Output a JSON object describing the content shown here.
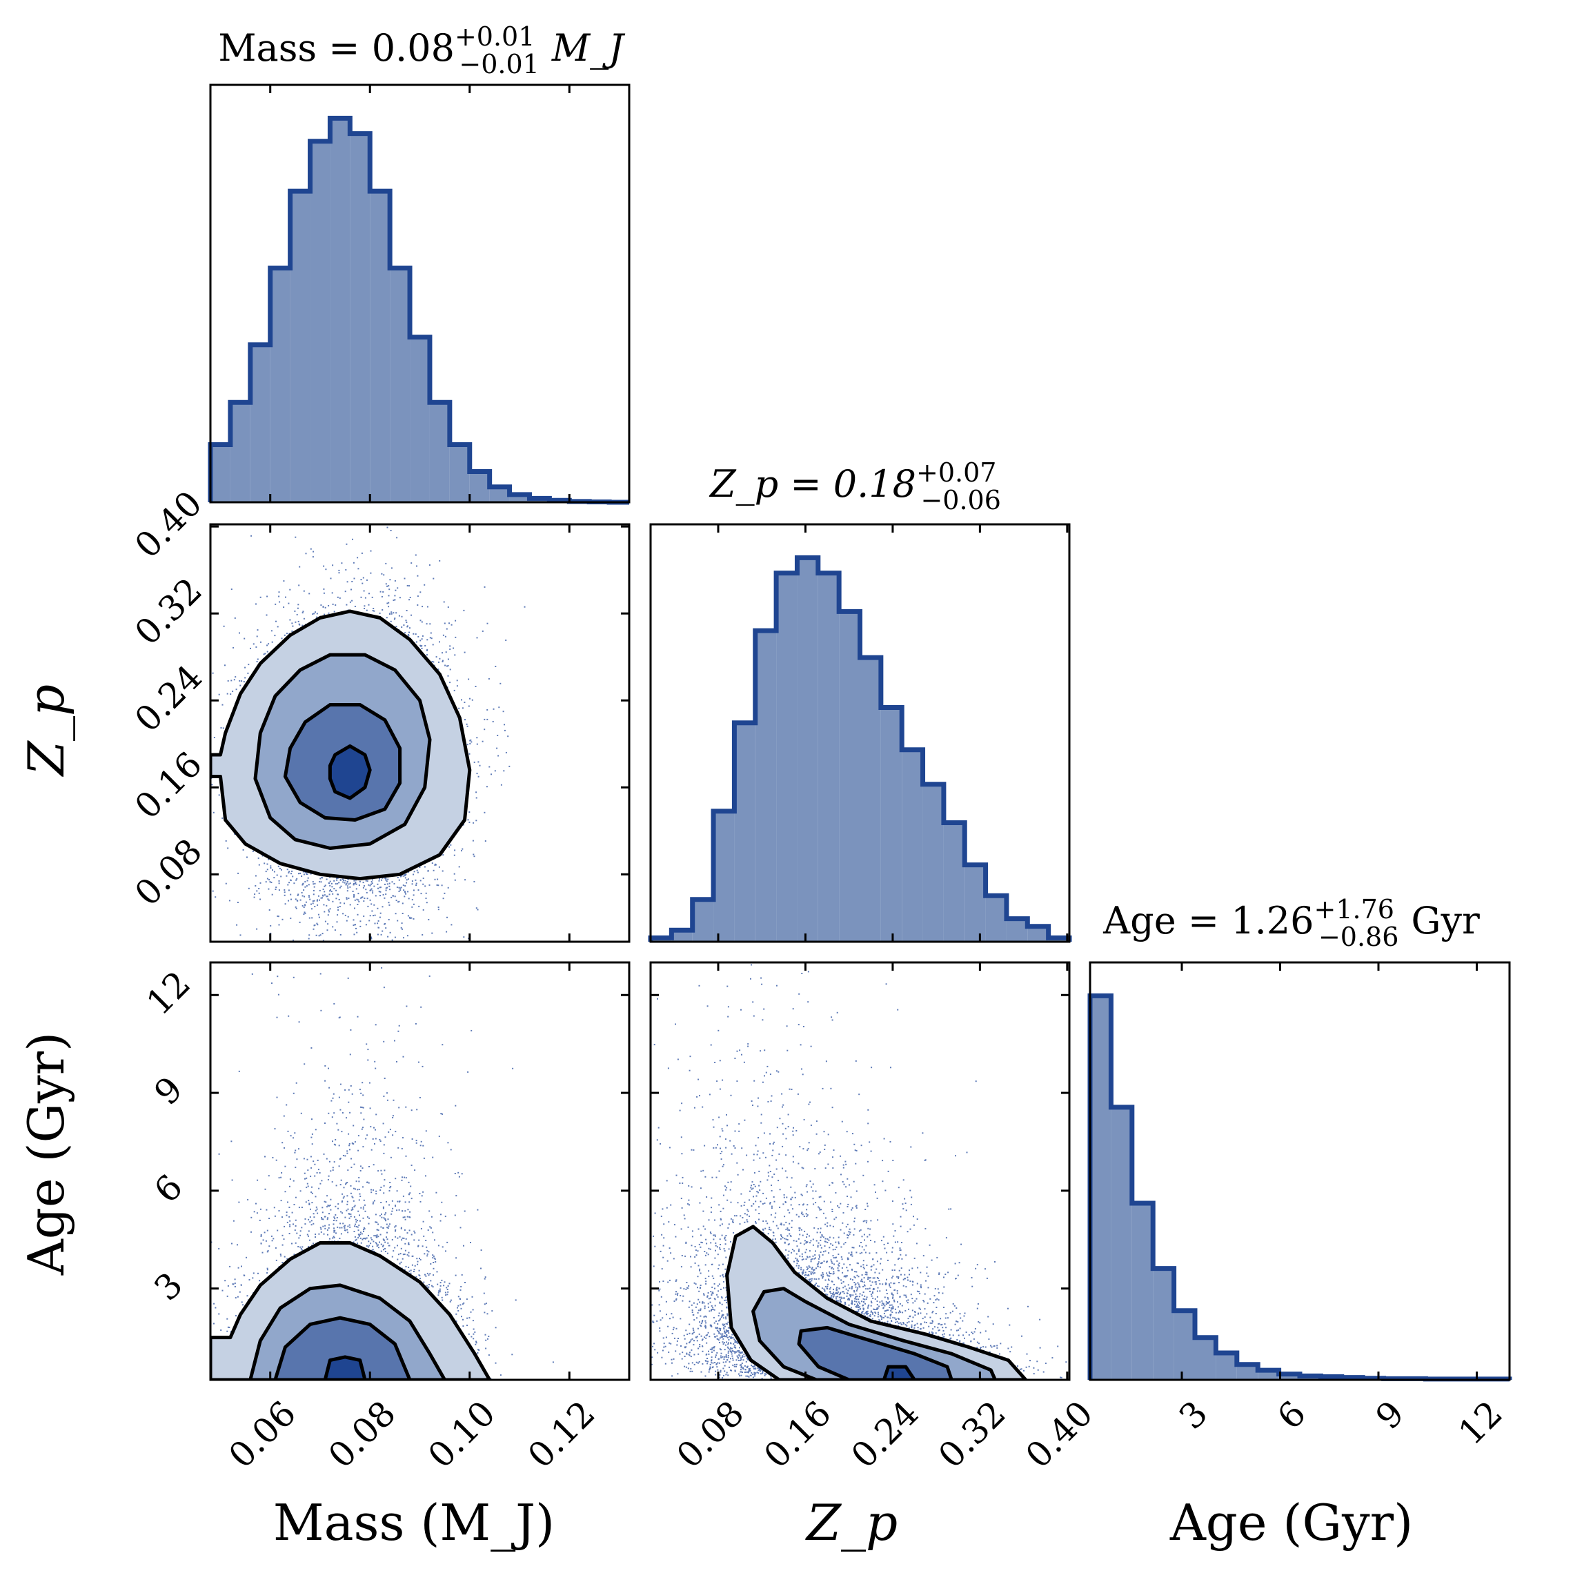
{
  "chart_data": {
    "type": "corner",
    "colors": {
      "hist_fill": "#7b93bd",
      "hist_edge": "#1f4591",
      "scatter": "#2a50a0",
      "contour_levels": [
        "#c5d1e3",
        "#91a7cb",
        "#5875ad",
        "#1f4591"
      ],
      "contour_line": "#000000"
    },
    "parameters": [
      {
        "id": "mass",
        "axis_label": "Mass (M_J)",
        "title_prefix": "Mass = 0.08",
        "title_sup": "+0.01",
        "title_sub": "−0.01",
        "title_unit": "M_J",
        "median": 0.08,
        "err_plus": 0.01,
        "err_minus": 0.01,
        "range": [
          0.048,
          0.132
        ],
        "ticks": [
          0.06,
          0.08,
          0.1,
          0.12
        ],
        "tick_labels": [
          "0.06",
          "0.08",
          "0.10",
          "0.12"
        ]
      },
      {
        "id": "zp",
        "axis_label": "Z_p",
        "title_prefix": "Z_p = 0.18",
        "title_sup": "+0.07",
        "title_sub": "−0.06",
        "title_unit": "",
        "median": 0.18,
        "err_plus": 0.07,
        "err_minus": 0.06,
        "range": [
          0.018,
          0.402
        ],
        "ticks": [
          0.08,
          0.16,
          0.24,
          0.32,
          0.4
        ],
        "tick_labels": [
          "0.08",
          "0.16",
          "0.24",
          "0.32",
          "0.40"
        ]
      },
      {
        "id": "age",
        "axis_label": "Age (Gyr)",
        "title_prefix": "Age = 1.26",
        "title_sup": "+1.76",
        "title_sub": "−0.86",
        "title_unit": "Gyr",
        "median": 1.26,
        "err_plus": 1.76,
        "err_minus": 0.86,
        "range": [
          0.2,
          13.0
        ],
        "ticks": [
          3,
          6,
          9,
          12
        ],
        "tick_labels": [
          "3",
          "6",
          "9",
          "12"
        ]
      }
    ],
    "histograms": {
      "mass": {
        "edges": [
          0.048,
          0.052,
          0.056,
          0.06,
          0.064,
          0.068,
          0.072,
          0.076,
          0.08,
          0.084,
          0.088,
          0.092,
          0.096,
          0.1,
          0.104,
          0.108,
          0.112,
          0.116,
          0.12,
          0.124,
          0.128,
          0.132
        ],
        "counts": [
          0.15,
          0.26,
          0.41,
          0.61,
          0.81,
          0.94,
          1.0,
          0.96,
          0.81,
          0.61,
          0.43,
          0.26,
          0.15,
          0.08,
          0.04,
          0.02,
          0.01,
          0.005,
          0.002,
          0.001,
          0.0
        ]
      },
      "zp": {
        "edges": [
          0.018,
          0.0372,
          0.0564,
          0.0756,
          0.0948,
          0.114,
          0.1332,
          0.1524,
          0.1716,
          0.1908,
          0.21,
          0.2292,
          0.2484,
          0.2676,
          0.2868,
          0.306,
          0.3252,
          0.3444,
          0.3636,
          0.3828,
          0.402
        ],
        "counts": [
          0.01,
          0.03,
          0.11,
          0.34,
          0.57,
          0.81,
          0.96,
          1.0,
          0.96,
          0.86,
          0.74,
          0.61,
          0.5,
          0.41,
          0.31,
          0.2,
          0.12,
          0.06,
          0.04,
          0.01
        ]
      },
      "age": {
        "edges": [
          0.2,
          0.84,
          1.48,
          2.12,
          2.76,
          3.4,
          4.04,
          4.68,
          5.32,
          5.96,
          6.6,
          7.24,
          7.88,
          8.52,
          9.16,
          9.8,
          10.44,
          11.08,
          11.72,
          12.36,
          13.0
        ],
        "counts": [
          1.0,
          0.71,
          0.46,
          0.29,
          0.18,
          0.11,
          0.07,
          0.04,
          0.025,
          0.015,
          0.01,
          0.008,
          0.006,
          0.004,
          0.003,
          0.003,
          0.002,
          0.002,
          0.002,
          0.002
        ]
      }
    },
    "pairs": [
      {
        "x": "mass",
        "y": "zp",
        "contours": [
          [
            [
              0.048,
              0.19
            ],
            [
              0.05,
              0.19
            ],
            [
              0.051,
              0.21
            ],
            [
              0.054,
              0.246
            ],
            [
              0.058,
              0.274
            ],
            [
              0.064,
              0.3
            ],
            [
              0.07,
              0.316
            ],
            [
              0.076,
              0.322
            ],
            [
              0.082,
              0.316
            ],
            [
              0.088,
              0.296
            ],
            [
              0.094,
              0.264
            ],
            [
              0.098,
              0.224
            ],
            [
              0.1,
              0.176
            ],
            [
              0.099,
              0.13
            ],
            [
              0.094,
              0.098
            ],
            [
              0.086,
              0.08
            ],
            [
              0.078,
              0.076
            ],
            [
              0.07,
              0.08
            ],
            [
              0.062,
              0.09
            ],
            [
              0.055,
              0.108
            ],
            [
              0.051,
              0.13
            ],
            [
              0.05,
              0.17
            ],
            [
              0.048,
              0.17
            ]
          ],
          [
            [
              0.058,
              0.21
            ],
            [
              0.061,
              0.244
            ],
            [
              0.066,
              0.268
            ],
            [
              0.072,
              0.282
            ],
            [
              0.079,
              0.282
            ],
            [
              0.085,
              0.268
            ],
            [
              0.09,
              0.24
            ],
            [
              0.092,
              0.204
            ],
            [
              0.091,
              0.16
            ],
            [
              0.087,
              0.126
            ],
            [
              0.08,
              0.108
            ],
            [
              0.072,
              0.104
            ],
            [
              0.065,
              0.112
            ],
            [
              0.06,
              0.132
            ],
            [
              0.057,
              0.168
            ]
          ],
          [
            [
              0.064,
              0.196
            ],
            [
              0.067,
              0.22
            ],
            [
              0.072,
              0.236
            ],
            [
              0.078,
              0.236
            ],
            [
              0.083,
              0.222
            ],
            [
              0.086,
              0.196
            ],
            [
              0.086,
              0.164
            ],
            [
              0.083,
              0.14
            ],
            [
              0.077,
              0.13
            ],
            [
              0.071,
              0.132
            ],
            [
              0.066,
              0.146
            ],
            [
              0.063,
              0.17
            ]
          ],
          [
            [
              0.072,
              0.18
            ],
            [
              0.073,
              0.19
            ],
            [
              0.076,
              0.198
            ],
            [
              0.079,
              0.19
            ],
            [
              0.08,
              0.176
            ],
            [
              0.079,
              0.16
            ],
            [
              0.076,
              0.15
            ],
            [
              0.073,
              0.156
            ],
            [
              0.072,
              0.168
            ]
          ]
        ]
      },
      {
        "x": "mass",
        "y": "age",
        "contours": [
          [
            [
              0.048,
              1.5
            ],
            [
              0.052,
              1.5
            ],
            [
              0.054,
              2.2
            ],
            [
              0.058,
              3.1
            ],
            [
              0.064,
              3.9
            ],
            [
              0.07,
              4.4
            ],
            [
              0.076,
              4.4
            ],
            [
              0.082,
              4.0
            ],
            [
              0.09,
              3.2
            ],
            [
              0.096,
              2.2
            ],
            [
              0.101,
              1.0
            ],
            [
              0.104,
              0.2
            ],
            [
              0.048,
              0.2
            ]
          ],
          [
            [
              0.056,
              0.2
            ],
            [
              0.058,
              1.4
            ],
            [
              0.062,
              2.4
            ],
            [
              0.068,
              3.0
            ],
            [
              0.074,
              3.1
            ],
            [
              0.082,
              2.7
            ],
            [
              0.088,
              2.0
            ],
            [
              0.092,
              1.0
            ],
            [
              0.095,
              0.2
            ]
          ],
          [
            [
              0.061,
              0.2
            ],
            [
              0.063,
              1.2
            ],
            [
              0.068,
              1.9
            ],
            [
              0.074,
              2.1
            ],
            [
              0.08,
              1.9
            ],
            [
              0.085,
              1.3
            ],
            [
              0.088,
              0.2
            ]
          ],
          [
            [
              0.071,
              0.2
            ],
            [
              0.072,
              0.8
            ],
            [
              0.075,
              0.9
            ],
            [
              0.078,
              0.8
            ],
            [
              0.079,
              0.2
            ]
          ]
        ]
      },
      {
        "x": "zp",
        "y": "age",
        "contours": [
          [
            [
              0.136,
              0.2
            ],
            [
              0.11,
              0.8
            ],
            [
              0.092,
              1.8
            ],
            [
              0.088,
              3.4
            ],
            [
              0.096,
              4.6
            ],
            [
              0.112,
              4.9
            ],
            [
              0.13,
              4.4
            ],
            [
              0.15,
              3.5
            ],
            [
              0.18,
              2.7
            ],
            [
              0.22,
              2.0
            ],
            [
              0.27,
              1.6
            ],
            [
              0.31,
              1.2
            ],
            [
              0.346,
              0.8
            ],
            [
              0.362,
              0.2
            ]
          ],
          [
            [
              0.17,
              0.2
            ],
            [
              0.14,
              0.6
            ],
            [
              0.118,
              1.4
            ],
            [
              0.112,
              2.3
            ],
            [
              0.122,
              2.9
            ],
            [
              0.14,
              3.0
            ],
            [
              0.16,
              2.6
            ],
            [
              0.2,
              1.9
            ],
            [
              0.25,
              1.4
            ],
            [
              0.294,
              1.0
            ],
            [
              0.33,
              0.5
            ],
            [
              0.334,
              0.2
            ]
          ],
          [
            [
              0.2,
              0.2
            ],
            [
              0.172,
              0.6
            ],
            [
              0.154,
              1.3
            ],
            [
              0.156,
              1.7
            ],
            [
              0.18,
              1.8
            ],
            [
              0.22,
              1.4
            ],
            [
              0.26,
              1.0
            ],
            [
              0.29,
              0.6
            ],
            [
              0.294,
              0.2
            ]
          ],
          [
            [
              0.232,
              0.2
            ],
            [
              0.236,
              0.6
            ],
            [
              0.252,
              0.6
            ],
            [
              0.26,
              0.2
            ]
          ]
        ]
      }
    ]
  }
}
